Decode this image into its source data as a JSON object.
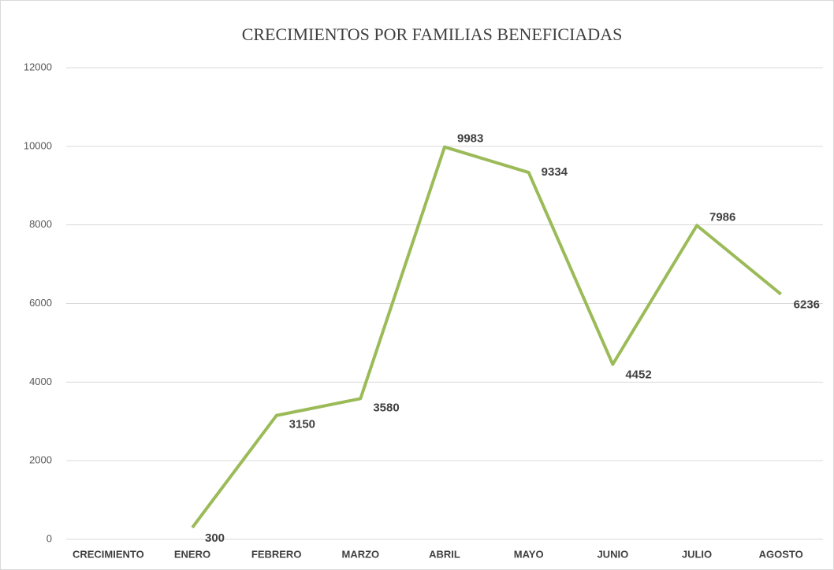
{
  "chart_data": {
    "type": "line",
    "title": "CRECIMIENTOS POR FAMILIAS BENEFICIADAS",
    "categories": [
      "CRECIMIENTO",
      "ENERO",
      "FEBRERO",
      "MARZO",
      "ABRIL",
      "MAYO",
      "JUNIO",
      "JULIO",
      "AGOSTO"
    ],
    "values": [
      null,
      300,
      3150,
      3580,
      9983,
      9334,
      4452,
      7986,
      6236
    ],
    "color": "#9bbb59",
    "ylim": [
      0,
      12000
    ],
    "yticks": [
      0,
      2000,
      4000,
      6000,
      8000,
      10000,
      12000
    ],
    "grid": true
  }
}
